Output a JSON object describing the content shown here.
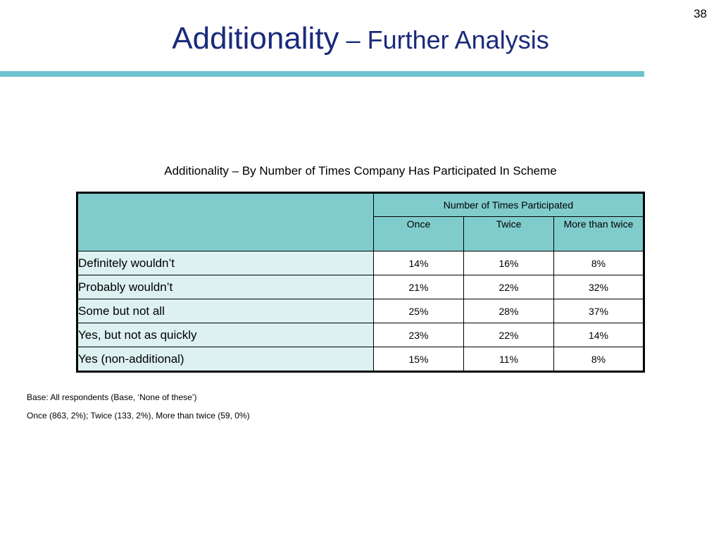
{
  "slide": {
    "page_number": "38",
    "title_main": "Additionality",
    "title_sub": " – Further Analysis",
    "accent_color": "#6cc3cf",
    "title_color": "#1a2a7a"
  },
  "table": {
    "caption": "Additionality – By Number of Times Company Has Participated In Scheme",
    "group_header": "Number of Times Participated",
    "columns": [
      "Once",
      "Twice",
      "More than twice"
    ],
    "rows": [
      {
        "label": "Definitely wouldn’t",
        "values": [
          "14%",
          "16%",
          "8%"
        ]
      },
      {
        "label": "Probably wouldn’t",
        "values": [
          "21%",
          "22%",
          "32%"
        ]
      },
      {
        "label": "Some but not all",
        "values": [
          "25%",
          "28%",
          "37%"
        ]
      },
      {
        "label": "Yes, but not as quickly",
        "values": [
          "23%",
          "22%",
          "14%"
        ]
      },
      {
        "label": "Yes (non-additional)",
        "values": [
          "15%",
          "11%",
          "8%"
        ]
      }
    ],
    "header_color": "#80cccc",
    "row_label_color": "#ddf1f1"
  },
  "footnotes": {
    "base": "Base: All respondents (Base, ‘None of these’)",
    "counts": "Once (863, 2%); Twice (133, 2%), More than twice (59, 0%)"
  }
}
